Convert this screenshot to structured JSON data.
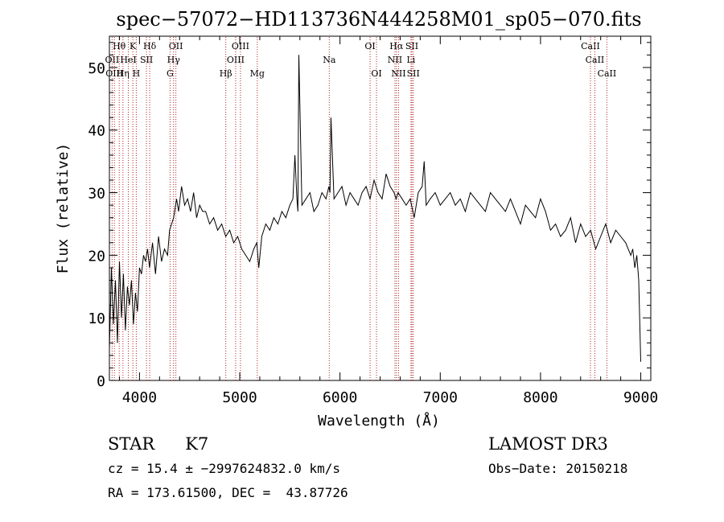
{
  "chart_data": {
    "type": "line",
    "title": "spec−57072−HD113736N444258M01_sp05−070.fits",
    "xlabel": "Wavelength (Å)",
    "ylabel": "Flux (relative)",
    "xlim": [
      3700,
      9100
    ],
    "ylim": [
      0,
      55
    ],
    "x_ticks": [
      4000,
      5000,
      6000,
      7000,
      8000,
      9000
    ],
    "y_ticks": [
      0,
      10,
      20,
      30,
      40,
      50
    ],
    "grid": false,
    "series": [
      {
        "color": "#000000",
        "x": [
          3700,
          3720,
          3740,
          3760,
          3780,
          3800,
          3820,
          3840,
          3860,
          3880,
          3900,
          3920,
          3940,
          3960,
          3980,
          4000,
          4020,
          4040,
          4060,
          4080,
          4100,
          4130,
          4160,
          4190,
          4220,
          4250,
          4280,
          4300,
          4320,
          4340,
          4360,
          4370,
          4390,
          4420,
          4450,
          4480,
          4510,
          4540,
          4570,
          4600,
          4630,
          4660,
          4700,
          4740,
          4780,
          4820,
          4860,
          4900,
          4940,
          4980,
          5020,
          5060,
          5100,
          5140,
          5170,
          5190,
          5220,
          5260,
          5300,
          5340,
          5380,
          5420,
          5460,
          5500,
          5530,
          5550,
          5570,
          5580,
          5590,
          5620,
          5660,
          5700,
          5740,
          5780,
          5820,
          5860,
          5890,
          5900,
          5910,
          5940,
          5980,
          6020,
          6060,
          6100,
          6140,
          6180,
          6220,
          6260,
          6300,
          6340,
          6380,
          6420,
          6460,
          6500,
          6540,
          6560,
          6580,
          6620,
          6660,
          6700,
          6740,
          6780,
          6820,
          6840,
          6860,
          6900,
          6950,
          7000,
          7050,
          7100,
          7150,
          7200,
          7250,
          7300,
          7350,
          7400,
          7450,
          7500,
          7550,
          7600,
          7650,
          7700,
          7750,
          7800,
          7850,
          7900,
          7950,
          8000,
          8050,
          8100,
          8150,
          8200,
          8250,
          8300,
          8350,
          8400,
          8450,
          8500,
          8550,
          8600,
          8650,
          8700,
          8750,
          8800,
          8850,
          8900,
          8920,
          8940,
          8960,
          8980,
          9000
        ],
        "y": [
          5,
          18,
          9,
          16,
          6,
          19,
          10,
          17,
          8,
          15,
          12,
          16,
          9,
          14,
          11,
          18,
          17,
          20,
          19,
          21,
          18,
          22,
          17,
          23,
          19,
          21,
          20,
          24,
          25,
          26,
          28,
          29,
          27,
          31,
          28,
          29,
          27,
          30,
          26,
          28,
          27,
          27,
          25,
          26,
          24,
          25,
          23,
          24,
          22,
          23,
          21,
          20,
          19,
          21,
          22,
          18,
          23,
          25,
          24,
          26,
          25,
          27,
          26,
          28,
          29,
          36,
          29,
          27,
          52,
          28,
          29,
          30,
          27,
          28,
          30,
          29,
          31,
          30,
          42,
          29,
          30,
          31,
          28,
          30,
          29,
          28,
          30,
          31,
          29,
          32,
          30,
          29,
          33,
          31,
          30,
          29,
          30,
          29,
          28,
          29,
          26,
          30,
          31,
          35,
          28,
          29,
          30,
          28,
          29,
          30,
          28,
          29,
          27,
          30,
          29,
          28,
          27,
          30,
          29,
          28,
          27,
          29,
          27,
          25,
          28,
          27,
          26,
          29,
          27,
          24,
          25,
          23,
          24,
          26,
          22,
          25,
          23,
          24,
          21,
          23,
          25,
          22,
          24,
          23,
          22,
          20,
          21,
          18,
          20,
          16,
          3
        ]
      }
    ],
    "lines_top": [
      {
        "label": "Hθ",
        "wl": 3798
      },
      {
        "label": "K",
        "wl": 3934
      },
      {
        "label": "Hδ",
        "wl": 4102
      },
      {
        "label": "OII",
        "wl": 4363
      },
      {
        "label": "OIII",
        "wl": 5007
      },
      {
        "label": "OI",
        "wl": 6300
      },
      {
        "label": "Hα",
        "wl": 6563
      },
      {
        "label": "SII",
        "wl": 6717
      },
      {
        "label": "CaII",
        "wl": 8498
      }
    ],
    "lines_mid": [
      {
        "label": "OII",
        "wl": 3727
      },
      {
        "label": "HeI",
        "wl": 3889
      },
      {
        "label": "SII",
        "wl": 4070
      },
      {
        "label": "Hγ",
        "wl": 4340
      },
      {
        "label": "OIII",
        "wl": 4959
      },
      {
        "label": "Na",
        "wl": 5893
      },
      {
        "label": "NII",
        "wl": 6548
      },
      {
        "label": "Li",
        "wl": 6708
      },
      {
        "label": "CaII",
        "wl": 8542
      }
    ],
    "lines_bot": [
      {
        "label": "OIII",
        "wl": 3750
      },
      {
        "label": "Hη",
        "wl": 3835
      },
      {
        "label": "H",
        "wl": 3968
      },
      {
        "label": "G",
        "wl": 4305
      },
      {
        "label": "Hβ",
        "wl": 4861
      },
      {
        "label": "Mg",
        "wl": 5175
      },
      {
        "label": "OI",
        "wl": 6364
      },
      {
        "label": "NII",
        "wl": 6584
      },
      {
        "label": "SII",
        "wl": 6731
      },
      {
        "label": "CaII",
        "wl": 8662
      }
    ],
    "line_color": "#b22222"
  },
  "info": {
    "object_class": "STAR",
    "subclass": "K7",
    "survey": "LAMOST DR3",
    "cz_line": "cz = 15.4 ± −2997624832.0 km/s",
    "obs_date": "Obs−Date: 20150218",
    "coords": "RA = 173.61500, DEC =  43.87726"
  }
}
